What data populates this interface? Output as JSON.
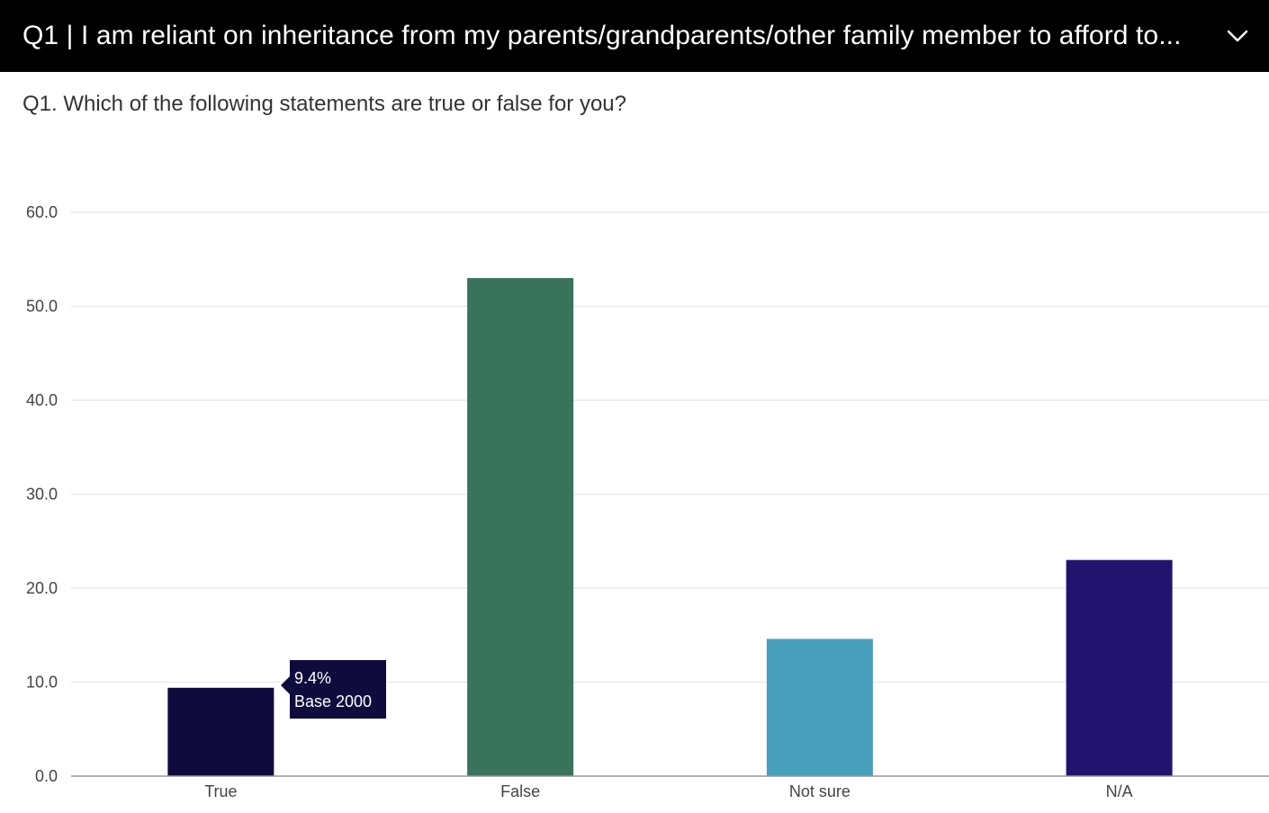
{
  "header": {
    "title": "Q1 | I am reliant on inheritance from my parents/grandparents/other family member to afford to...",
    "dropdown_icon": "chevron-down-icon"
  },
  "subtitle": "Q1. Which of the following statements are true or false for you?",
  "tooltip": {
    "value": "9.4%",
    "base": "Base 2000"
  },
  "chart_data": {
    "type": "bar",
    "title": "Q1. Which of the following statements are true or false for you?",
    "categories": [
      "True",
      "False",
      "Not sure",
      "N/A"
    ],
    "values": [
      9.4,
      53.0,
      14.6,
      23.0
    ],
    "colors": [
      "#100b3d",
      "#3a735c",
      "#489fbb",
      "#21136e"
    ],
    "ylim": [
      0,
      60
    ],
    "yticks": [
      "0.0",
      "10.0",
      "20.0",
      "30.0",
      "40.0",
      "50.0",
      "60.0"
    ],
    "xlabel": "",
    "ylabel": "",
    "grid": true
  }
}
